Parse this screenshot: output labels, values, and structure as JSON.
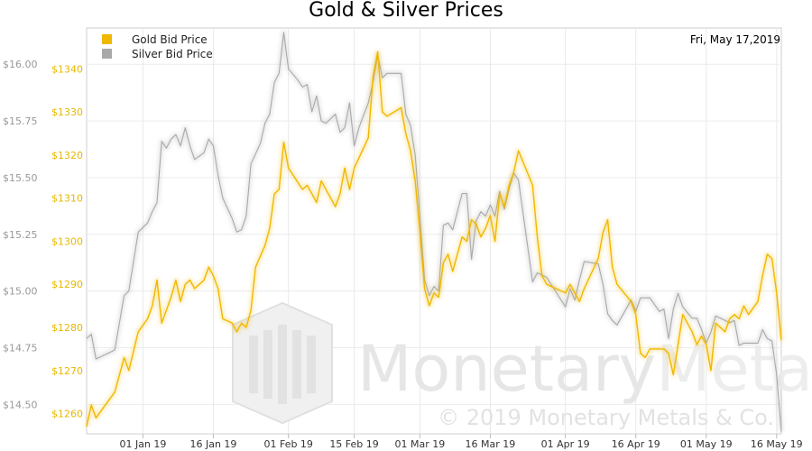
{
  "chart_data": {
    "type": "line",
    "title": "Gold & Silver Prices",
    "date_label": "Fri, May 17,2019",
    "x_ticks": [
      "01 Jan 19",
      "16 Jan 19",
      "01 Feb 19",
      "15 Feb 19",
      "01 Mar 19",
      "16 Mar 19",
      "01 Apr 19",
      "16 Apr 19",
      "01 May 19",
      "16 May 19"
    ],
    "x_range": [
      "2018-12-20",
      "2019-05-17"
    ],
    "y_left": {
      "label": "",
      "ticks": [
        "$14.50",
        "$14.75",
        "$15.00",
        "$15.25",
        "$15.50",
        "$15.75",
        "$16.00"
      ],
      "range": [
        14.37,
        16.16
      ]
    },
    "y_right": {
      "label": "",
      "ticks": [
        "$1260",
        "$1270",
        "$1280",
        "$1290",
        "$1300",
        "$1310",
        "$1320",
        "$1330",
        "$1340"
      ],
      "range": [
        1255.3,
        1349.5
      ]
    },
    "legend": {
      "placement": "top-left",
      "entries": [
        "Gold Bid Price",
        "Silver Bid Price"
      ]
    },
    "grid": true,
    "series": [
      {
        "name": "Gold Bid Price",
        "axis": "right",
        "color": "#f0b800",
        "points": [
          [
            "2018-12-20",
            1257
          ],
          [
            "2018-12-21",
            1262
          ],
          [
            "2018-12-22",
            1259
          ],
          [
            "2018-12-26",
            1265
          ],
          [
            "2018-12-28",
            1273
          ],
          [
            "2018-12-29",
            1270
          ],
          [
            "2018-12-31",
            1279
          ],
          [
            "2019-01-02",
            1282
          ],
          [
            "2019-01-03",
            1285
          ],
          [
            "2019-01-04",
            1291
          ],
          [
            "2019-01-05",
            1281
          ],
          [
            "2019-01-07",
            1287
          ],
          [
            "2019-01-08",
            1291
          ],
          [
            "2019-01-09",
            1286
          ],
          [
            "2019-01-10",
            1290
          ],
          [
            "2019-01-11",
            1291
          ],
          [
            "2019-01-12",
            1289
          ],
          [
            "2019-01-14",
            1291
          ],
          [
            "2019-01-15",
            1294
          ],
          [
            "2019-01-16",
            1292
          ],
          [
            "2019-01-17",
            1289
          ],
          [
            "2019-01-18",
            1282
          ],
          [
            "2019-01-20",
            1281
          ],
          [
            "2019-01-21",
            1279
          ],
          [
            "2019-01-22",
            1281
          ],
          [
            "2019-01-23",
            1280
          ],
          [
            "2019-01-24",
            1284
          ],
          [
            "2019-01-25",
            1294
          ],
          [
            "2019-01-27",
            1299
          ],
          [
            "2019-01-28",
            1303
          ],
          [
            "2019-01-29",
            1311
          ],
          [
            "2019-01-30",
            1312
          ],
          [
            "2019-01-31",
            1323
          ],
          [
            "2019-02-01",
            1317
          ],
          [
            "2019-02-04",
            1312
          ],
          [
            "2019-02-05",
            1313
          ],
          [
            "2019-02-06",
            1311
          ],
          [
            "2019-02-07",
            1309
          ],
          [
            "2019-02-08",
            1314
          ],
          [
            "2019-02-11",
            1308
          ],
          [
            "2019-02-12",
            1311
          ],
          [
            "2019-02-13",
            1317
          ],
          [
            "2019-02-14",
            1312
          ],
          [
            "2019-02-15",
            1317
          ],
          [
            "2019-02-18",
            1324
          ],
          [
            "2019-02-19",
            1338
          ],
          [
            "2019-02-20",
            1344
          ],
          [
            "2019-02-21",
            1330
          ],
          [
            "2019-02-22",
            1329
          ],
          [
            "2019-02-25",
            1331
          ],
          [
            "2019-02-26",
            1325
          ],
          [
            "2019-02-27",
            1321
          ],
          [
            "2019-02-28",
            1314
          ],
          [
            "2019-03-01",
            1302
          ],
          [
            "2019-03-02",
            1289
          ],
          [
            "2019-03-03",
            1285
          ],
          [
            "2019-03-04",
            1288
          ],
          [
            "2019-03-05",
            1287
          ],
          [
            "2019-03-06",
            1295
          ],
          [
            "2019-03-07",
            1297
          ],
          [
            "2019-03-08",
            1293
          ],
          [
            "2019-03-10",
            1301
          ],
          [
            "2019-03-11",
            1300
          ],
          [
            "2019-03-12",
            1305
          ],
          [
            "2019-03-13",
            1304
          ],
          [
            "2019-03-14",
            1301
          ],
          [
            "2019-03-15",
            1303
          ],
          [
            "2019-03-16",
            1306
          ],
          [
            "2019-03-17",
            1300
          ],
          [
            "2019-03-18",
            1311
          ],
          [
            "2019-03-19",
            1308
          ],
          [
            "2019-03-20",
            1313
          ],
          [
            "2019-03-21",
            1316
          ],
          [
            "2019-03-22",
            1321
          ],
          [
            "2019-03-25",
            1313
          ],
          [
            "2019-03-26",
            1301
          ],
          [
            "2019-03-27",
            1292
          ],
          [
            "2019-03-28",
            1290
          ],
          [
            "2019-04-01",
            1288
          ],
          [
            "2019-04-02",
            1290
          ],
          [
            "2019-04-03",
            1288
          ],
          [
            "2019-04-04",
            1286
          ],
          [
            "2019-04-05",
            1289
          ],
          [
            "2019-04-08",
            1296
          ],
          [
            "2019-04-09",
            1302
          ],
          [
            "2019-04-10",
            1305
          ],
          [
            "2019-04-11",
            1294
          ],
          [
            "2019-04-12",
            1290
          ],
          [
            "2019-04-15",
            1286
          ],
          [
            "2019-04-16",
            1283
          ],
          [
            "2019-04-17",
            1274
          ],
          [
            "2019-04-18",
            1273
          ],
          [
            "2019-04-19",
            1275
          ],
          [
            "2019-04-22",
            1275
          ],
          [
            "2019-04-23",
            1274
          ],
          [
            "2019-04-24",
            1269
          ],
          [
            "2019-04-25",
            1276
          ],
          [
            "2019-04-26",
            1283
          ],
          [
            "2019-04-28",
            1279
          ],
          [
            "2019-04-29",
            1276
          ],
          [
            "2019-04-30",
            1278
          ],
          [
            "2019-05-01",
            1276
          ],
          [
            "2019-05-02",
            1270
          ],
          [
            "2019-05-03",
            1281
          ],
          [
            "2019-05-05",
            1279
          ],
          [
            "2019-05-06",
            1282
          ],
          [
            "2019-05-07",
            1283
          ],
          [
            "2019-05-08",
            1282
          ],
          [
            "2019-05-09",
            1285
          ],
          [
            "2019-05-10",
            1283
          ],
          [
            "2019-05-12",
            1286
          ],
          [
            "2019-05-13",
            1292
          ],
          [
            "2019-05-14",
            1297
          ],
          [
            "2019-05-15",
            1296
          ],
          [
            "2019-05-16",
            1288
          ],
          [
            "2019-05-17",
            1277
          ]
        ]
      },
      {
        "name": "Silver Bid Price",
        "axis": "left",
        "color": "#a9a9a9",
        "points": [
          [
            "2018-12-20",
            14.79
          ],
          [
            "2018-12-21",
            14.81
          ],
          [
            "2018-12-22",
            14.7
          ],
          [
            "2018-12-26",
            14.74
          ],
          [
            "2018-12-28",
            14.98
          ],
          [
            "2018-12-29",
            15.0
          ],
          [
            "2018-12-31",
            15.26
          ],
          [
            "2019-01-02",
            15.3
          ],
          [
            "2019-01-03",
            15.35
          ],
          [
            "2019-01-04",
            15.39
          ],
          [
            "2019-01-05",
            15.66
          ],
          [
            "2019-01-06",
            15.63
          ],
          [
            "2019-01-07",
            15.67
          ],
          [
            "2019-01-08",
            15.69
          ],
          [
            "2019-01-09",
            15.64
          ],
          [
            "2019-01-10",
            15.72
          ],
          [
            "2019-01-11",
            15.64
          ],
          [
            "2019-01-12",
            15.58
          ],
          [
            "2019-01-14",
            15.61
          ],
          [
            "2019-01-15",
            15.67
          ],
          [
            "2019-01-16",
            15.64
          ],
          [
            "2019-01-17",
            15.51
          ],
          [
            "2019-01-18",
            15.41
          ],
          [
            "2019-01-20",
            15.32
          ],
          [
            "2019-01-21",
            15.26
          ],
          [
            "2019-01-22",
            15.27
          ],
          [
            "2019-01-23",
            15.33
          ],
          [
            "2019-01-24",
            15.56
          ],
          [
            "2019-01-26",
            15.65
          ],
          [
            "2019-01-27",
            15.74
          ],
          [
            "2019-01-28",
            15.78
          ],
          [
            "2019-01-29",
            15.92
          ],
          [
            "2019-01-30",
            15.96
          ],
          [
            "2019-01-31",
            16.14
          ],
          [
            "2019-02-01",
            15.98
          ],
          [
            "2019-02-03",
            15.93
          ],
          [
            "2019-02-04",
            15.9
          ],
          [
            "2019-02-05",
            15.91
          ],
          [
            "2019-02-06",
            15.79
          ],
          [
            "2019-02-07",
            15.86
          ],
          [
            "2019-02-08",
            15.75
          ],
          [
            "2019-02-09",
            15.74
          ],
          [
            "2019-02-11",
            15.78
          ],
          [
            "2019-02-12",
            15.7
          ],
          [
            "2019-02-13",
            15.72
          ],
          [
            "2019-02-14",
            15.83
          ],
          [
            "2019-02-15",
            15.64
          ],
          [
            "2019-02-16",
            15.72
          ],
          [
            "2019-02-18",
            15.83
          ],
          [
            "2019-02-19",
            15.92
          ],
          [
            "2019-02-20",
            16.04
          ],
          [
            "2019-02-21",
            15.94
          ],
          [
            "2019-02-22",
            15.96
          ],
          [
            "2019-02-25",
            15.96
          ],
          [
            "2019-02-26",
            15.78
          ],
          [
            "2019-02-27",
            15.73
          ],
          [
            "2019-02-28",
            15.6
          ],
          [
            "2019-03-01",
            15.33
          ],
          [
            "2019-03-02",
            15.05
          ],
          [
            "2019-03-03",
            14.98
          ],
          [
            "2019-03-04",
            15.02
          ],
          [
            "2019-03-05",
            15.0
          ],
          [
            "2019-03-06",
            15.29
          ],
          [
            "2019-03-07",
            15.3
          ],
          [
            "2019-03-08",
            15.27
          ],
          [
            "2019-03-10",
            15.43
          ],
          [
            "2019-03-11",
            15.43
          ],
          [
            "2019-03-12",
            15.14
          ],
          [
            "2019-03-13",
            15.31
          ],
          [
            "2019-03-14",
            15.35
          ],
          [
            "2019-03-15",
            15.33
          ],
          [
            "2019-03-16",
            15.38
          ],
          [
            "2019-03-17",
            15.33
          ],
          [
            "2019-03-18",
            15.44
          ],
          [
            "2019-03-19",
            15.36
          ],
          [
            "2019-03-20",
            15.45
          ],
          [
            "2019-03-21",
            15.52
          ],
          [
            "2019-03-22",
            15.49
          ],
          [
            "2019-03-25",
            15.04
          ],
          [
            "2019-03-26",
            15.08
          ],
          [
            "2019-03-27",
            15.07
          ],
          [
            "2019-03-28",
            15.06
          ],
          [
            "2019-04-01",
            14.93
          ],
          [
            "2019-04-02",
            15.01
          ],
          [
            "2019-04-03",
            14.96
          ],
          [
            "2019-04-04",
            15.05
          ],
          [
            "2019-04-05",
            15.13
          ],
          [
            "2019-04-08",
            15.12
          ],
          [
            "2019-04-09",
            15.03
          ],
          [
            "2019-04-10",
            14.9
          ],
          [
            "2019-04-11",
            14.87
          ],
          [
            "2019-04-12",
            14.85
          ],
          [
            "2019-04-15",
            14.96
          ],
          [
            "2019-04-16",
            14.91
          ],
          [
            "2019-04-17",
            14.97
          ],
          [
            "2019-04-18",
            14.97
          ],
          [
            "2019-04-19",
            14.97
          ],
          [
            "2019-04-21",
            14.91
          ],
          [
            "2019-04-22",
            14.92
          ],
          [
            "2019-04-23",
            14.79
          ],
          [
            "2019-04-24",
            14.92
          ],
          [
            "2019-04-25",
            14.99
          ],
          [
            "2019-04-26",
            14.93
          ],
          [
            "2019-04-28",
            14.88
          ],
          [
            "2019-04-29",
            14.88
          ],
          [
            "2019-04-30",
            14.83
          ],
          [
            "2019-05-01",
            14.77
          ],
          [
            "2019-05-02",
            14.82
          ],
          [
            "2019-05-03",
            14.89
          ],
          [
            "2019-05-04",
            14.88
          ],
          [
            "2019-05-06",
            14.86
          ],
          [
            "2019-05-07",
            14.87
          ],
          [
            "2019-05-08",
            14.76
          ],
          [
            "2019-05-09",
            14.77
          ],
          [
            "2019-05-12",
            14.77
          ],
          [
            "2019-05-13",
            14.83
          ],
          [
            "2019-05-14",
            14.79
          ],
          [
            "2019-05-15",
            14.78
          ],
          [
            "2019-05-16",
            14.63
          ],
          [
            "2019-05-17",
            14.38
          ]
        ]
      }
    ]
  },
  "watermark": {
    "brand": "Monetary",
    "brand_suffix": "Metals",
    "copyright": "© 2019 Monetary Metals & Co."
  }
}
